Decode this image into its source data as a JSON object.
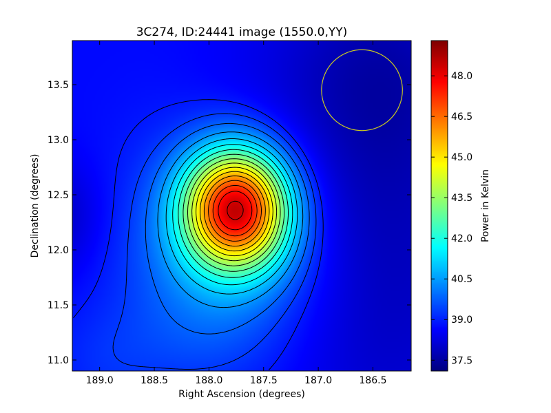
{
  "chart_data": {
    "type": "heatmap",
    "title": "3C274, ID:24441 image (1550.0,YY)",
    "xlabel": "Right Ascension (degrees)",
    "ylabel": "Declination (degrees)",
    "xlim": [
      189.25,
      186.15
    ],
    "ylim": [
      10.9,
      13.9
    ],
    "x_ticks": [
      "189.0",
      "188.5",
      "188.0",
      "187.5",
      "187.0",
      "186.5"
    ],
    "y_ticks": [
      "11.0",
      "11.5",
      "12.0",
      "12.5",
      "13.0",
      "13.5"
    ],
    "colormap": "jet",
    "colorbar": {
      "label": "Power in Kelvin",
      "range": [
        37.1,
        49.3
      ],
      "ticks": [
        "37.5",
        "39.0",
        "40.5",
        "42.0",
        "43.5",
        "45.0",
        "46.5",
        "48.0"
      ]
    },
    "peak": {
      "ra": 187.75,
      "dec": 12.38,
      "value": 49.2
    },
    "background_level": 38.7,
    "contour_levels": [
      38.9,
      39.3,
      39.8,
      40.4,
      41.0,
      41.6,
      42.2,
      42.8,
      43.4,
      44.0,
      44.6,
      45.2,
      45.8,
      46.4,
      47.0,
      47.6,
      48.3
    ],
    "beam_circle": {
      "ra": 186.6,
      "dec": 13.45,
      "radius_deg": 0.37,
      "color": "#c8c820"
    },
    "grid": false,
    "legend": "none"
  }
}
